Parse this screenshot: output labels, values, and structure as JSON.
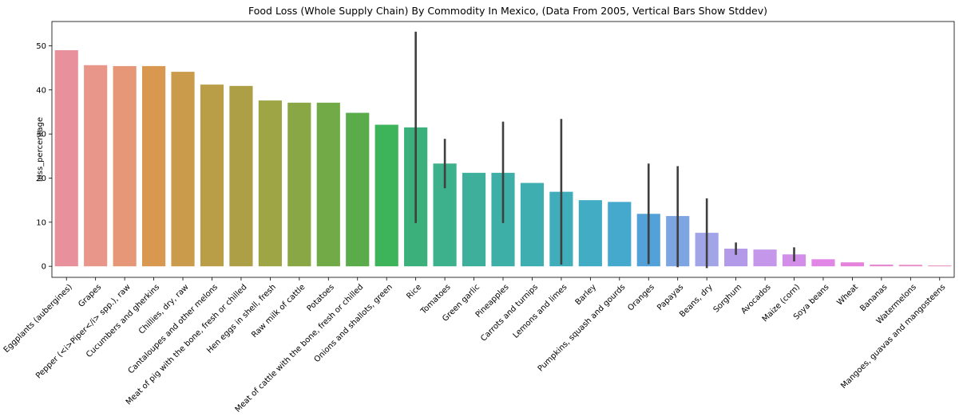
{
  "chart_data": {
    "type": "bar",
    "title": "Food Loss (Whole Supply Chain) By Commodity In Mexico, (Data From 2005, Vertical Bars Show Stddev)",
    "xlabel": "",
    "ylabel": "loss_percentage",
    "ylim": [
      -2.5,
      55.5
    ],
    "yticks": [
      0,
      10,
      20,
      30,
      40,
      50
    ],
    "grid": false,
    "categories": [
      "Eggplants (aubergines)",
      "Grapes",
      "Pepper (<i>Piper</i> spp.), raw",
      "Cucumbers and gherkins",
      "Chillies, dry, raw",
      "Cantaloupes and other melons",
      "Meat of pig with the bone, fresh or chilled",
      "Hen eggs in shell, fresh",
      "Raw milk of cattle",
      "Potatoes",
      "Meat of cattle with the bone, fresh or chilled",
      "Onions and shallots, green",
      "Rice",
      "Tomatoes",
      "Green garlic",
      "Pineapples",
      "Carrots and turnips",
      "Lemons and limes",
      "Barley",
      "Pumpkins, squash and gourds",
      "Oranges",
      "Papayas",
      "Beans, dry",
      "Sorghum",
      "Avocados",
      "Maize (corn)",
      "Soya beans",
      "Wheat",
      "Bananas",
      "Watermelons",
      "Mangoes, guavas and mangosteens"
    ],
    "values": [
      49.0,
      45.6,
      45.4,
      45.4,
      44.1,
      41.2,
      40.9,
      37.6,
      37.1,
      37.1,
      34.8,
      32.1,
      31.5,
      23.3,
      21.2,
      21.2,
      18.9,
      16.9,
      15.0,
      14.6,
      11.9,
      11.4,
      7.6,
      4.0,
      3.8,
      2.7,
      1.6,
      0.9,
      0.4,
      0.35,
      0.2
    ],
    "error_low": [
      null,
      null,
      null,
      null,
      null,
      null,
      null,
      null,
      null,
      null,
      null,
      null,
      9.8,
      17.7,
      null,
      9.8,
      null,
      0.4,
      null,
      null,
      0.5,
      -0.2,
      -0.4,
      2.6,
      null,
      1.1,
      null,
      null,
      null,
      null,
      null
    ],
    "error_high": [
      null,
      null,
      null,
      null,
      null,
      null,
      null,
      null,
      null,
      null,
      null,
      null,
      53.2,
      28.9,
      null,
      32.8,
      null,
      33.4,
      null,
      null,
      23.3,
      22.7,
      15.4,
      5.4,
      null,
      4.3,
      null,
      null,
      null,
      null,
      null
    ],
    "colors": [
      "#e8919c",
      "#e8958a",
      "#e59778",
      "#d9984f",
      "#c99b4a",
      "#b99d47",
      "#ad9f45",
      "#9ea545",
      "#8aa746",
      "#72aa47",
      "#5aab49",
      "#3db35a",
      "#3bb07a",
      "#3db08c",
      "#3daf9a",
      "#3dafa6",
      "#3eaeb0",
      "#3fadba",
      "#41acc3",
      "#45a9cd",
      "#52a1d9",
      "#7da5e2",
      "#a1a5e8",
      "#b39ae8",
      "#c597ea",
      "#d38eea",
      "#e185e6",
      "#e583dc",
      "#e68ad0",
      "#e98dc6",
      "#e994bd"
    ],
    "errorbar_color": "#3f3f3f"
  }
}
